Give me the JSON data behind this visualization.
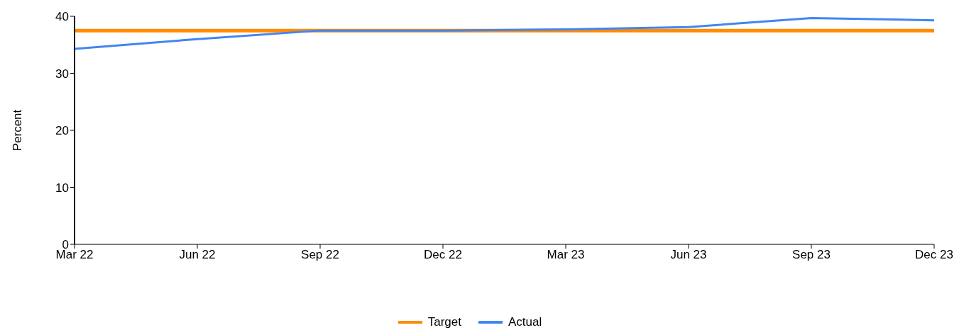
{
  "chart_data": {
    "type": "line",
    "ylabel": "Percent",
    "categories": [
      "Mar 22",
      "Jun 22",
      "Sep 22",
      "Dec 22",
      "Mar 23",
      "Jun 23",
      "Sep 23",
      "Dec 23"
    ],
    "series": [
      {
        "name": "Target",
        "color": "#ff8c00",
        "values": [
          37.5,
          37.5,
          37.5,
          37.5,
          37.5,
          37.5,
          37.5,
          37.5
        ]
      },
      {
        "name": "Actual",
        "color": "#4285f4",
        "values": [
          34.3,
          36.0,
          37.5,
          37.5,
          37.7,
          38.1,
          39.7,
          39.3
        ]
      }
    ],
    "ylim": [
      0,
      40
    ],
    "yticks": [
      0,
      10,
      20,
      30,
      40
    ],
    "grid": false,
    "legend": "bottom",
    "marker": "none",
    "line_style": "solid"
  }
}
